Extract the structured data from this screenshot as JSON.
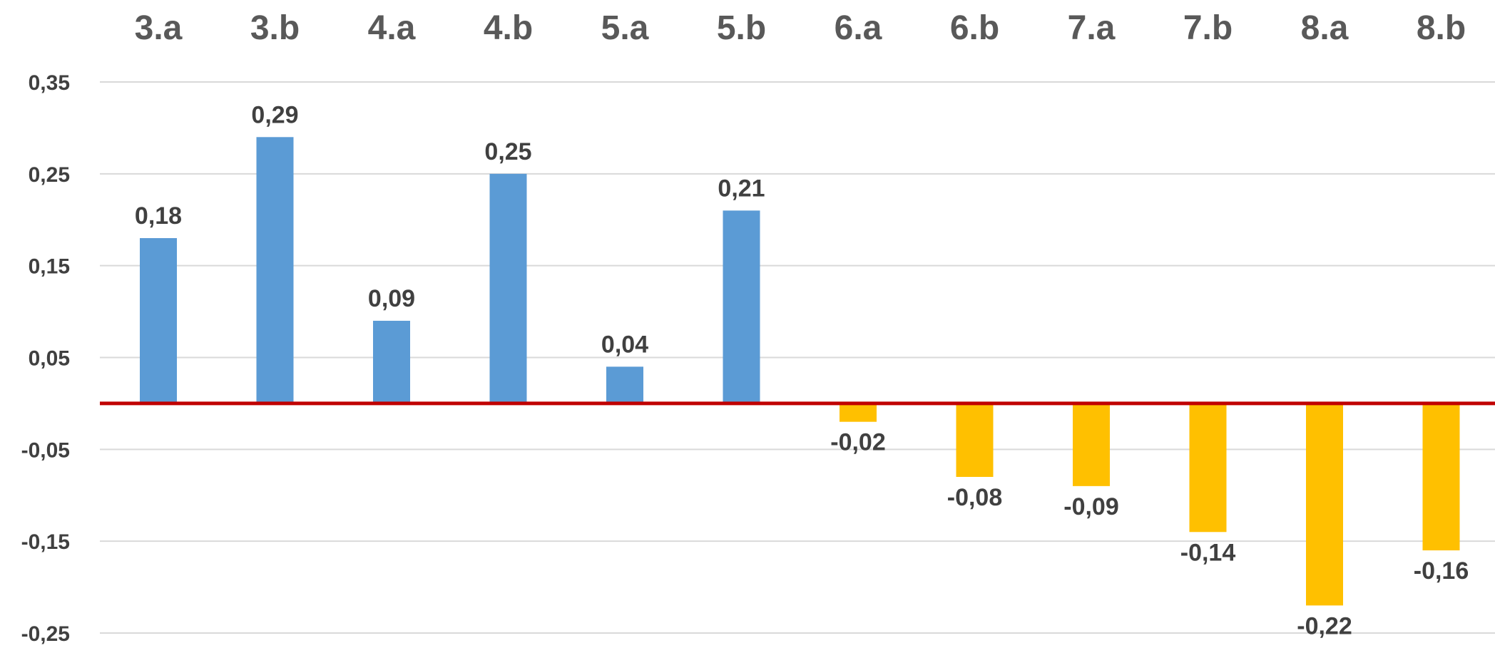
{
  "chart_data": {
    "type": "bar",
    "categories": [
      "3.a",
      "3.b",
      "4.a",
      "4.b",
      "5.a",
      "5.b",
      "6.a",
      "6.b",
      "7.a",
      "7.b",
      "8.a",
      "8.b"
    ],
    "values": [
      0.18,
      0.29,
      0.09,
      0.25,
      0.04,
      0.21,
      -0.02,
      -0.08,
      -0.09,
      -0.14,
      -0.22,
      -0.16
    ],
    "data_labels": [
      "0,18",
      "0,29",
      "0,09",
      "0,25",
      "0,04",
      "0,21",
      "-0,02",
      "-0,08",
      "-0,09",
      "-0,14",
      "-0,22",
      "-0,16"
    ],
    "yticks": [
      0.35,
      0.25,
      0.15,
      0.05,
      -0.05,
      -0.15,
      -0.25
    ],
    "ytick_labels": [
      "0,35",
      "0,25",
      "0,15",
      "0,05",
      "-0,05",
      "-0,15",
      "-0,25"
    ],
    "ylim": [
      -0.25,
      0.35
    ],
    "grid": true,
    "category_labels_position": "top",
    "colors": {
      "positive": "#5B9BD5",
      "negative": "#FFC000",
      "zero_line": "#C00000",
      "grid": "#D9D9D9",
      "category_text": "#595959",
      "label_text": "#404040"
    },
    "title": "",
    "xlabel": "",
    "ylabel": ""
  }
}
